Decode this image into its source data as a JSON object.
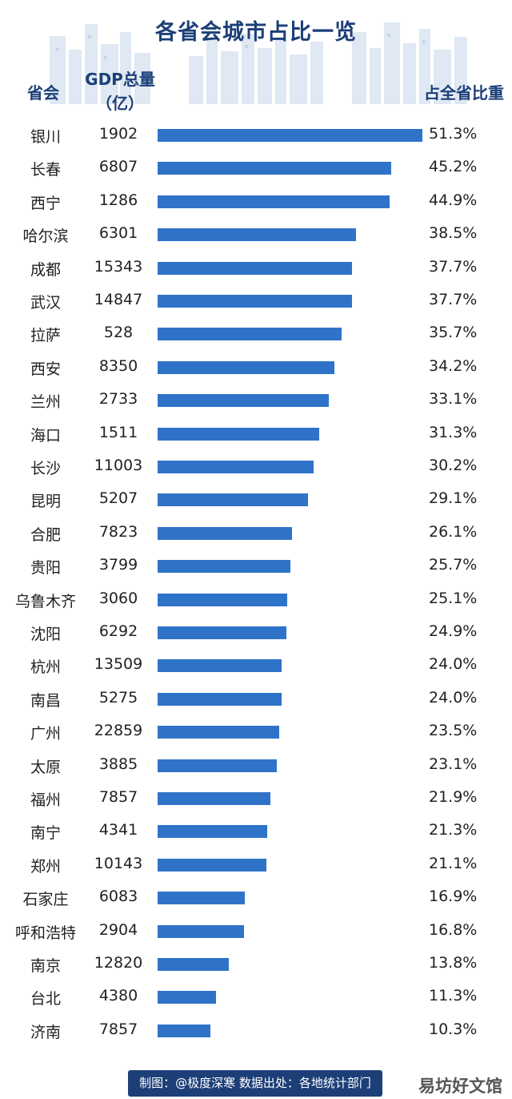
{
  "header": {
    "title": "各省会城市占比一览",
    "col_city": "省会",
    "col_gdp_line1": "GDP总量",
    "col_gdp_line2": "（亿）",
    "col_share": "占全省比重"
  },
  "chart_data": {
    "type": "bar",
    "orientation": "horizontal",
    "categories": [
      "银川",
      "长春",
      "西宁",
      "哈尔滨",
      "成都",
      "武汉",
      "拉萨",
      "西安",
      "兰州",
      "海口",
      "长沙",
      "昆明",
      "合肥",
      "贵阳",
      "乌鲁木齐",
      "沈阳",
      "杭州",
      "南昌",
      "广州",
      "太原",
      "福州",
      "南宁",
      "郑州",
      "石家庄",
      "呼和浩特",
      "南京",
      "台北",
      "济南"
    ],
    "gdp": [
      "1902",
      "6807",
      "1286",
      "6301",
      "15343",
      "14847",
      "528",
      "8350",
      "2733",
      "1511",
      "11003",
      "5207",
      "7823",
      "3799",
      "3060",
      "6292",
      "13509",
      "5275",
      "22859",
      "3885",
      "7857",
      "4341",
      "10143",
      "6083",
      "2904",
      "12820",
      "4380",
      "7857"
    ],
    "values": [
      51.3,
      45.2,
      44.9,
      38.5,
      37.7,
      37.7,
      35.7,
      34.2,
      33.1,
      31.3,
      30.2,
      29.1,
      26.1,
      25.7,
      25.1,
      24.9,
      24.0,
      24.0,
      23.5,
      23.1,
      21.9,
      21.3,
      21.1,
      16.9,
      16.8,
      13.8,
      11.3,
      10.3
    ],
    "value_labels": [
      "51.3%",
      "45.2%",
      "44.9%",
      "38.5%",
      "37.7%",
      "37.7%",
      "35.7%",
      "34.2%",
      "33.1%",
      "31.3%",
      "30.2%",
      "29.1%",
      "26.1%",
      "25.7%",
      "25.1%",
      "24.9%",
      "24.0%",
      "24.0%",
      "23.5%",
      "23.1%",
      "21.9%",
      "21.3%",
      "21.1%",
      "16.9%",
      "16.8%",
      "13.8%",
      "11.3%",
      "10.3%"
    ],
    "bar_color": "#2f73c9",
    "xlim": [
      0,
      51.3
    ],
    "grid": false,
    "legend": "none"
  },
  "footer": {
    "text": "制图：@极度深寒  数据出处：各地统计部门",
    "bg_color": "#1c3f78"
  },
  "watermark": "易坊好文馆"
}
